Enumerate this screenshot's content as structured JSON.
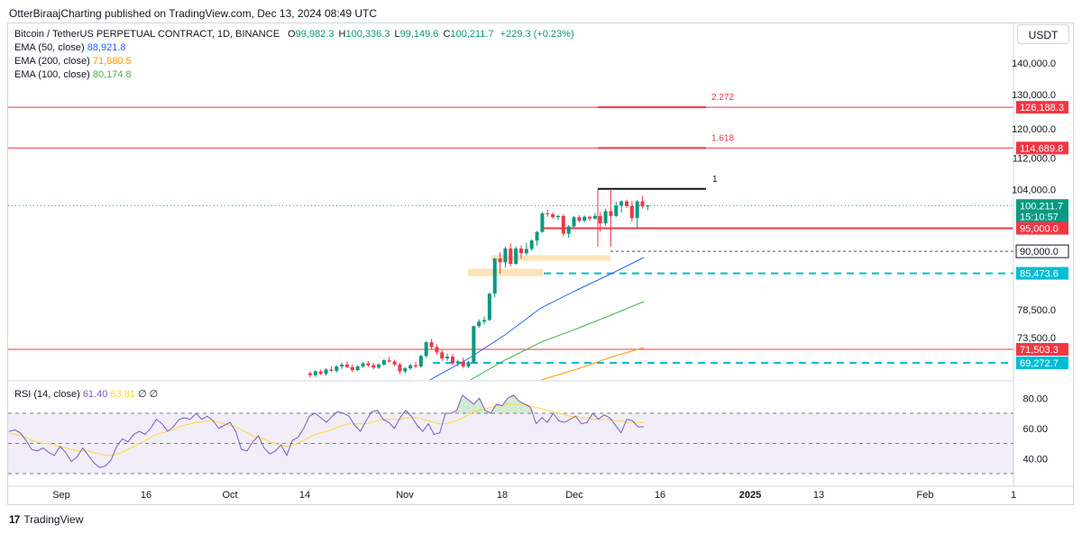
{
  "header": {
    "published": "OtterBiraajCharting published on TradingView.com, Dec 13, 2024 08:49 UTC"
  },
  "legend": {
    "symbol": "Bitcoin / TetherUS PERPETUAL CONTRACT, 1D, BINANCE",
    "o_label": "O",
    "o_value": "99,982.3",
    "h_label": "H",
    "h_value": "100,336.3",
    "l_label": "L",
    "l_value": "99,149.6",
    "c_label": "C",
    "c_value": "100,211.7",
    "change": "+229.3 (+0.23%)",
    "ema50_label": "EMA (50, close)",
    "ema50_value": "88,921.8",
    "ema200_label": "EMA (200, close)",
    "ema200_value": "71,880.5",
    "ema100_label": "EMA (100, close)",
    "ema100_value": "80,174.8"
  },
  "rsi_legend": {
    "label": "RSI (14, close)",
    "value": "61.40",
    "ma_value": "63.81",
    "nan1": "∅",
    "nan2": "∅"
  },
  "currency_button": "USDT",
  "footer": {
    "brand": "TradingView",
    "logo": "17"
  },
  "colors": {
    "up": "#089981",
    "down": "#f23645",
    "ema50": "#2962ff",
    "ema200": "#ff9800",
    "ema100": "#4caf50",
    "level": "#f23645",
    "support": "#00bcd4",
    "rsi": "#7e57c2",
    "rsi_ma": "#fdd835",
    "zone": "#ffe0b2"
  },
  "chart_data": {
    "type": "candlestick",
    "price_axis": {
      "ticks": [
        "140,000.0",
        "130,000.0",
        "120,000.0",
        "112,000.0",
        "104,000.0",
        "78,500.0",
        "73,500.0"
      ],
      "tick_values": [
        140000,
        130000,
        120000,
        112000,
        104000,
        78500,
        73500
      ]
    },
    "time_axis": [
      "Sep",
      "16",
      "Oct",
      "14",
      "Nov",
      "18",
      "Dec",
      "16",
      "2025",
      "13",
      "Feb",
      "1"
    ],
    "price_labels": [
      {
        "text": "126,188.3",
        "value": 126188.3,
        "style": "level"
      },
      {
        "text": "114,689.8",
        "value": 114689.8,
        "style": "level"
      },
      {
        "text": "100,211.7",
        "value": 100211.7,
        "style": "last"
      },
      {
        "text": "15:10:57",
        "value": 100211.7,
        "style": "countdown"
      },
      {
        "text": "95,000.0",
        "value": 95000,
        "style": "level"
      },
      {
        "text": "90,000.0",
        "value": 90000,
        "style": "dark"
      },
      {
        "text": "85,473.6",
        "value": 85473.6,
        "style": "support"
      },
      {
        "text": "71,503.3",
        "value": 71503.3,
        "style": "level"
      },
      {
        "text": "69,272.7",
        "value": 69272.7,
        "style": "support"
      }
    ],
    "fib_levels": [
      {
        "label": "2.272",
        "value": 126188.3
      },
      {
        "label": "1.618",
        "value": 114689.8
      },
      {
        "label": "1",
        "value": 104200
      }
    ],
    "candles": [
      [
        67600,
        67900,
        66900,
        67300
      ],
      [
        67300,
        68100,
        67000,
        67900
      ],
      [
        67900,
        68200,
        67300,
        67500
      ],
      [
        67500,
        68400,
        67200,
        68200
      ],
      [
        68200,
        68700,
        67800,
        68000
      ],
      [
        68000,
        68900,
        67700,
        68700
      ],
      [
        68700,
        69300,
        68300,
        69000
      ],
      [
        69000,
        69500,
        68400,
        68600
      ],
      [
        68600,
        69000,
        67800,
        68100
      ],
      [
        68100,
        68900,
        67900,
        68700
      ],
      [
        68700,
        69400,
        68500,
        69200
      ],
      [
        69200,
        69600,
        68600,
        68900
      ],
      [
        68900,
        69300,
        68200,
        68500
      ],
      [
        68500,
        69200,
        68300,
        69000
      ],
      [
        69000,
        69900,
        68800,
        69700
      ],
      [
        69700,
        70300,
        69300,
        69500
      ],
      [
        69500,
        69800,
        68700,
        69000
      ],
      [
        69000,
        69300,
        67500,
        67900
      ],
      [
        67900,
        68600,
        67600,
        68400
      ],
      [
        68400,
        69100,
        68100,
        68900
      ],
      [
        68900,
        69400,
        68400,
        68700
      ],
      [
        68700,
        70600,
        68500,
        70400
      ],
      [
        70400,
        72900,
        70100,
        72700
      ],
      [
        72700,
        73300,
        71600,
        71900
      ],
      [
        71900,
        72400,
        70600,
        71000
      ],
      [
        71000,
        71400,
        69600,
        70000
      ],
      [
        70000,
        70800,
        69600,
        70300
      ],
      [
        70300,
        70700,
        68900,
        69200
      ],
      [
        69200,
        69800,
        68700,
        69500
      ],
      [
        69500,
        70100,
        68400,
        68700
      ],
      [
        68700,
        69600,
        68400,
        69400
      ],
      [
        69400,
        75600,
        69200,
        75500
      ],
      [
        75500,
        76700,
        75200,
        76300
      ],
      [
        76300,
        77200,
        75800,
        76600
      ],
      [
        76600,
        81600,
        76400,
        81500
      ],
      [
        81500,
        88600,
        80800,
        88500
      ],
      [
        88500,
        89800,
        85400,
        87700
      ],
      [
        87700,
        91000,
        86600,
        90600
      ],
      [
        90600,
        91700,
        86900,
        87400
      ],
      [
        87400,
        91000,
        87200,
        90600
      ],
      [
        90600,
        91300,
        88500,
        89600
      ],
      [
        89600,
        91800,
        89200,
        90500
      ],
      [
        90500,
        92600,
        90100,
        92300
      ],
      [
        92300,
        94400,
        91200,
        94200
      ],
      [
        94200,
        98700,
        94000,
        98400
      ],
      [
        98400,
        99300,
        97600,
        98200
      ],
      [
        98200,
        98500,
        97100,
        97500
      ],
      [
        97500,
        98000,
        96800,
        97800
      ],
      [
        97800,
        98200,
        93200,
        93800
      ],
      [
        93800,
        95700,
        92900,
        95400
      ],
      [
        95400,
        97800,
        95100,
        97500
      ],
      [
        97500,
        98000,
        96300,
        96700
      ],
      [
        96700,
        97900,
        96400,
        97600
      ],
      [
        97600,
        97800,
        96700,
        97200
      ],
      [
        97200,
        98500,
        96900,
        97800
      ],
      [
        97800,
        98700,
        94200,
        96100
      ],
      [
        96100,
        99500,
        95500,
        98900
      ],
      [
        98900,
        103900,
        91000,
        97800
      ],
      [
        97800,
        101100,
        97500,
        100200
      ],
      [
        100200,
        101400,
        98500,
        101200
      ],
      [
        101200,
        101600,
        99600,
        100100
      ],
      [
        100100,
        101300,
        96500,
        97300
      ],
      [
        97300,
        101500,
        95100,
        101200
      ],
      [
        101200,
        102500,
        99500,
        99983
      ],
      [
        99982.3,
        100336.3,
        99149.6,
        100211.7
      ]
    ],
    "ema50": [
      [
        475,
        423
      ],
      [
        520,
        398
      ],
      [
        560,
        372
      ],
      [
        600,
        342
      ],
      [
        640,
        322
      ],
      [
        680,
        303
      ],
      [
        714,
        286
      ]
    ],
    "ema100": [
      [
        520,
        423
      ],
      [
        560,
        400
      ],
      [
        600,
        380
      ],
      [
        640,
        365
      ],
      [
        680,
        349
      ],
      [
        714,
        335
      ]
    ],
    "ema200": [
      [
        597,
        423
      ],
      [
        640,
        410
      ],
      [
        680,
        396
      ],
      [
        714,
        386
      ]
    ],
    "rsi": {
      "ticks": [
        "80.00",
        "60.00",
        "40.00"
      ],
      "tick_values": [
        80,
        60,
        40
      ],
      "bands": [
        70,
        50,
        30
      ],
      "values": [
        58,
        59,
        57,
        52,
        46,
        45,
        47,
        44,
        42,
        48,
        44,
        38,
        41,
        47,
        42,
        37,
        34,
        35,
        39,
        48,
        53,
        51,
        56,
        58,
        56,
        60,
        66,
        63,
        58,
        61,
        66,
        67,
        66,
        70,
        66,
        68,
        65,
        60,
        62,
        64,
        58,
        46,
        45,
        51,
        55,
        47,
        43,
        45,
        49,
        42,
        52,
        54,
        60,
        68,
        70,
        67,
        64,
        68,
        71,
        70,
        68,
        62,
        58,
        65,
        71,
        72,
        66,
        64,
        60,
        67,
        72,
        68,
        62,
        58,
        63,
        56,
        57,
        70,
        70,
        72,
        82,
        79,
        76,
        80,
        72,
        70,
        76,
        75,
        80,
        82,
        78,
        76,
        74,
        63,
        67,
        64,
        70,
        65,
        64,
        66,
        68,
        63,
        64,
        70,
        66,
        69,
        67,
        62,
        57,
        66,
        65,
        61,
        61
      ],
      "ma": [
        57,
        56,
        55,
        54,
        52,
        51,
        50,
        50,
        49,
        48,
        47,
        46,
        45,
        45,
        45,
        44,
        43,
        42,
        42,
        43,
        44,
        46,
        48,
        50,
        52,
        54,
        56,
        57,
        58,
        59,
        61,
        62,
        63,
        64,
        64,
        65,
        65,
        64,
        63,
        62,
        61,
        59,
        57,
        55,
        54,
        53,
        51,
        50,
        49,
        48,
        49,
        50,
        52,
        54,
        56,
        57,
        58,
        59,
        61,
        62,
        63,
        63,
        63,
        63,
        64,
        65,
        66,
        66,
        66,
        66,
        67,
        67,
        67,
        66,
        65,
        64,
        63,
        63,
        64,
        65,
        67,
        69,
        71,
        72,
        73,
        74,
        75,
        75,
        76,
        76,
        76,
        76,
        75,
        74,
        73,
        72,
        71,
        70,
        69,
        68,
        68,
        67,
        67,
        66,
        66,
        66,
        66,
        65,
        65,
        64,
        64,
        64,
        63.8
      ]
    }
  }
}
